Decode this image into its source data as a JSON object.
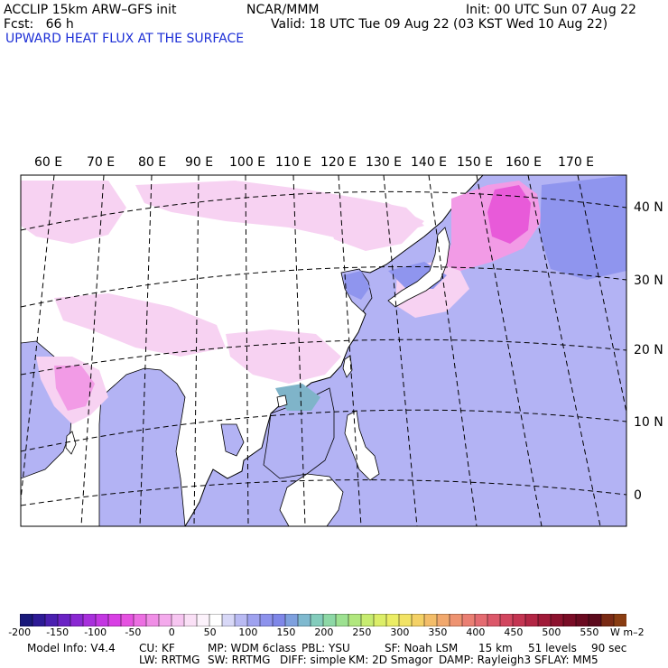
{
  "header": {
    "model": "ACCLIP 15km ARW–GFS init",
    "org": "NCAR/MMM",
    "init": "Init: 00 UTC Sun 07 Aug 22",
    "fcst": "Fcst:   66 h",
    "valid": "Valid: 18 UTC Tue 09 Aug 22 (03 KST Wed 10 Aug 22)",
    "field": "UPWARD HEAT FLUX AT THE SURFACE"
  },
  "map": {
    "lon_labels": [
      "60 E",
      "70 E",
      "80 E",
      "90 E",
      "100 E",
      "110 E",
      "120 E",
      "130 E",
      "140 E",
      "150 E",
      "160 E",
      "170 E"
    ],
    "lat_labels": [
      "40 N",
      "30 N",
      "20 N",
      "10 N",
      "0"
    ],
    "colors": {
      "ocean": "#b3b3f4",
      "land": "#ffffff",
      "pink_light": "#f7d2f2",
      "pink": "#f29be6",
      "magenta": "#e85ad9",
      "blue_med": "#8f95ee",
      "teal": "#7fb4c9",
      "coast": "#000000",
      "grid": "#000000"
    }
  },
  "colorbar": {
    "labels": [
      "-200",
      "-150",
      "-100",
      "-50",
      "0",
      "50",
      "100",
      "150",
      "200",
      "250",
      "300",
      "350",
      "400",
      "450",
      "500",
      "550"
    ],
    "unit": "W m–2",
    "colors": [
      "#19197a",
      "#2d1a96",
      "#4a1fb0",
      "#6a22c4",
      "#8a28d2",
      "#a82fdc",
      "#c337e2",
      "#d83fe4",
      "#e552e0",
      "#ec6fe2",
      "#f08ee6",
      "#f4aaec",
      "#f7c6f1",
      "#fae0f6",
      "#fcf2fb",
      "#ffffff",
      "#d8d8f7",
      "#b9baf3",
      "#9fa2ef",
      "#8d92ec",
      "#7f87e8",
      "#7ea0de",
      "#7fb9cf",
      "#83ccbc",
      "#8dd8a6",
      "#9de191",
      "#b1e77e",
      "#c7ec70",
      "#dcee68",
      "#ebed65",
      "#f2e365",
      "#f4d166",
      "#f3bd69",
      "#f1a86d",
      "#ee9371",
      "#ea7f73",
      "#e46b71",
      "#dc586a",
      "#d2465f",
      "#c43552",
      "#b32645",
      "#a01a38",
      "#8c122e",
      "#7a0c26",
      "#6a0a20",
      "#5c0a1c",
      "#7a2a14",
      "#8a3d12"
    ]
  },
  "footer": {
    "row1": [
      "Model Info: V4.4",
      "CU: KF",
      "MP: WDM 6class",
      "PBL: YSU",
      "SF: Noah LSM",
      "15 km",
      "51 levels",
      "90 sec"
    ],
    "row2": [
      "LW: RRTMG",
      "SW: RRTMG",
      "DIFF: simple",
      "KM: 2D Smagor",
      "DAMP: Rayleigh3",
      "SFLAY: MM5"
    ]
  }
}
